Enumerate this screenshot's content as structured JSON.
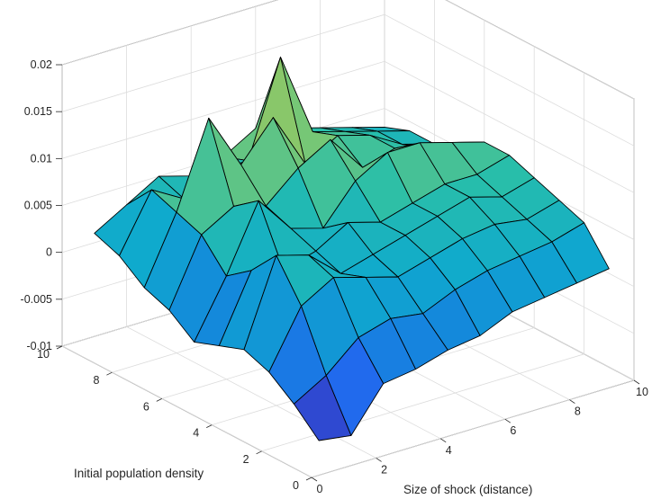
{
  "chart_data": {
    "type": "surface",
    "title": "",
    "xlabel": "Size of shock (distance)",
    "ylabel": "Initial population density",
    "zlabel": "",
    "xlim": [
      0,
      10
    ],
    "ylim": [
      0,
      10
    ],
    "zlim": [
      -0.01,
      0.02
    ],
    "x_ticks": [
      "0",
      "2",
      "4",
      "6",
      "8",
      "10"
    ],
    "y_ticks": [
      "0",
      "2",
      "4",
      "6",
      "8",
      "10"
    ],
    "z_ticks": [
      "-0.01",
      "-0.005",
      "0",
      "0.005",
      "0.01",
      "0.015",
      "0.02"
    ],
    "grid": true,
    "colormap": "parula",
    "x": [
      1,
      2,
      3,
      4,
      5,
      6,
      7,
      8,
      9,
      10
    ],
    "y": [
      1,
      2,
      3,
      4,
      5,
      6,
      7,
      8,
      9,
      10
    ],
    "z": [
      [
        -0.0085,
        -0.009,
        -0.0045,
        -0.004,
        -0.003,
        -0.0025,
        -0.001,
        -0.0005,
        0.0,
        0.0005
      ],
      [
        -0.006,
        -0.004,
        -0.001,
        0.0,
        -0.0005,
        0.001,
        0.002,
        0.0025,
        0.003,
        0.004
      ],
      [
        -0.004,
        0.002,
        0.004,
        0.003,
        0.002,
        0.003,
        0.004,
        0.0045,
        0.004,
        0.005
      ],
      [
        -0.003,
        0.006,
        0.005,
        0.002,
        0.003,
        0.004,
        0.005,
        0.006,
        0.005,
        0.006
      ],
      [
        -0.004,
        0.003,
        0.002,
        0.003,
        0.005,
        0.004,
        0.005,
        0.006,
        0.006,
        0.007
      ],
      [
        -0.005,
        0.001,
        0.008,
        0.004,
        0.003,
        0.007,
        0.009,
        0.009,
        0.008,
        0.007
      ],
      [
        -0.003,
        0.004,
        0.006,
        0.005,
        0.008,
        0.01,
        0.006,
        0.007,
        0.006,
        0.005
      ],
      [
        -0.002,
        0.005,
        0.014,
        0.008,
        0.012,
        0.006,
        0.008,
        0.007,
        0.005,
        0.004
      ],
      [
        0.0,
        0.006,
        0.004,
        0.006,
        0.006,
        0.016,
        0.007,
        0.006,
        0.005,
        0.004
      ],
      [
        0.001,
        0.003,
        0.005,
        0.004,
        0.005,
        0.007,
        0.006,
        0.005,
        0.004,
        0.003
      ]
    ]
  }
}
